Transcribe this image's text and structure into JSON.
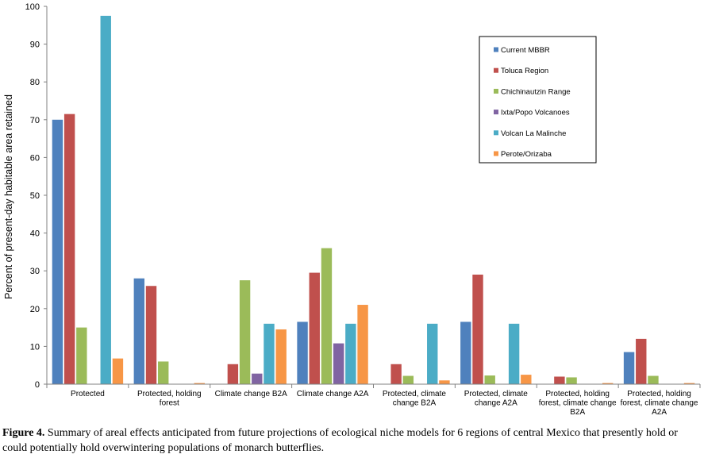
{
  "chart_data": {
    "type": "bar",
    "title": "",
    "xlabel": "",
    "ylabel": "Percent of present-day habitable area retained",
    "ylim": [
      0,
      100
    ],
    "yticks": [
      0,
      10,
      20,
      30,
      40,
      50,
      60,
      70,
      80,
      90,
      100
    ],
    "grid": false,
    "legend_position": "top-right",
    "categories": [
      [
        "Protected"
      ],
      [
        "Protected, holding",
        "forest"
      ],
      [
        "Climate change B2A"
      ],
      [
        "Climate change A2A"
      ],
      [
        "Protected, climate",
        "change B2A"
      ],
      [
        "Protected, climate",
        "change A2A"
      ],
      [
        "Protected, holding",
        "forest, climate change",
        "B2A"
      ],
      [
        "Protected, holding",
        "forest, climate change",
        "A2A"
      ]
    ],
    "series": [
      {
        "name": "Current MBBR",
        "color": "#4f81bd",
        "values": [
          70,
          28,
          0,
          16.5,
          0,
          16.5,
          0,
          8.5
        ]
      },
      {
        "name": "Toluca Region",
        "color": "#c0504d",
        "values": [
          71.5,
          26,
          5.3,
          29.5,
          5.3,
          29,
          2,
          12
        ]
      },
      {
        "name": "Chichinautzin Range",
        "color": "#9bbb59",
        "values": [
          15,
          6,
          27.5,
          36,
          2.2,
          2.3,
          1.8,
          2.2
        ]
      },
      {
        "name": "Ixta/Popo Volcanoes",
        "color": "#8064a2",
        "values": [
          0,
          0,
          2.8,
          10.8,
          0,
          0,
          0,
          0
        ]
      },
      {
        "name": "Volcan La Malinche",
        "color": "#4bacc6",
        "values": [
          97.5,
          0,
          16,
          16,
          16,
          16,
          0,
          0
        ]
      },
      {
        "name": "Perote/Orizaba",
        "color": "#f79646",
        "values": [
          6.8,
          0.3,
          14.5,
          21,
          1,
          2.5,
          0.3,
          0.3
        ]
      }
    ]
  },
  "caption": {
    "label": "Figure 4.",
    "text": " Summary of areal effects anticipated from future projections of ecological niche models for 6 regions of central Mexico that presently hold or could potentially hold overwintering populations of monarch butterflies."
  }
}
